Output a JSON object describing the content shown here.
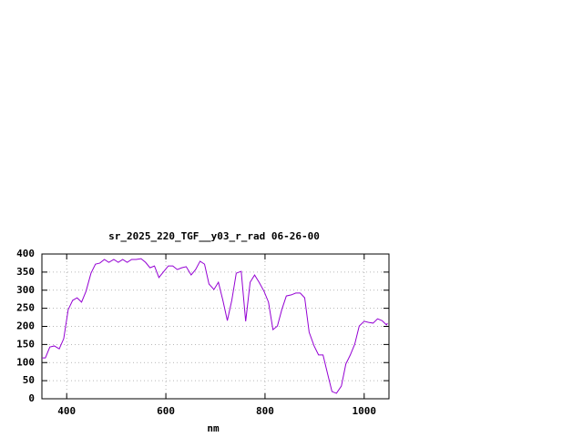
{
  "chart_data": {
    "type": "line",
    "title": "sr_2025_220_TGF__y03_r_rad 06-26-00",
    "x_label": "nm",
    "x": [
      350,
      357,
      366,
      375,
      385,
      394,
      403,
      412,
      421,
      430,
      439,
      449,
      458,
      467,
      476,
      485,
      495,
      504,
      513,
      522,
      531,
      540,
      550,
      559,
      568,
      577,
      586,
      596,
      605,
      614,
      623,
      632,
      641,
      651,
      660,
      669,
      678,
      687,
      697,
      706,
      715,
      724,
      733,
      742,
      752,
      761,
      770,
      779,
      788,
      798,
      807,
      816,
      825,
      834,
      843,
      853,
      862,
      871,
      880,
      889,
      899,
      908,
      917,
      926,
      935,
      944,
      954,
      963,
      972,
      981,
      990,
      1000,
      1009,
      1018,
      1027,
      1036,
      1045,
      1047
    ],
    "series": [
      {
        "color": "#9400d3",
        "values": [
          113,
          113,
          143,
          146,
          138,
          166,
          246,
          272,
          279,
          267,
          297,
          347,
          372,
          375,
          385,
          377,
          385,
          377,
          385,
          377,
          385,
          385,
          387,
          377,
          362,
          367,
          335,
          352,
          367,
          367,
          357,
          362,
          365,
          342,
          357,
          380,
          372,
          317,
          302,
          322,
          272,
          216,
          272,
          347,
          352,
          214,
          322,
          342,
          322,
          297,
          267,
          191,
          201,
          247,
          284,
          287,
          292,
          292,
          279,
          184,
          146,
          121,
          121,
          70,
          20,
          15,
          35,
          96,
          121,
          151,
          201,
          214,
          211,
          209,
          221,
          216,
          204,
          209
        ]
      }
    ],
    "xlim": [
      350,
      1050
    ],
    "ylim": [
      0,
      400
    ],
    "xticks": [
      400,
      600,
      800,
      1000
    ],
    "yticks": [
      0,
      50,
      100,
      150,
      200,
      250,
      300,
      350,
      400
    ],
    "grid": true
  }
}
